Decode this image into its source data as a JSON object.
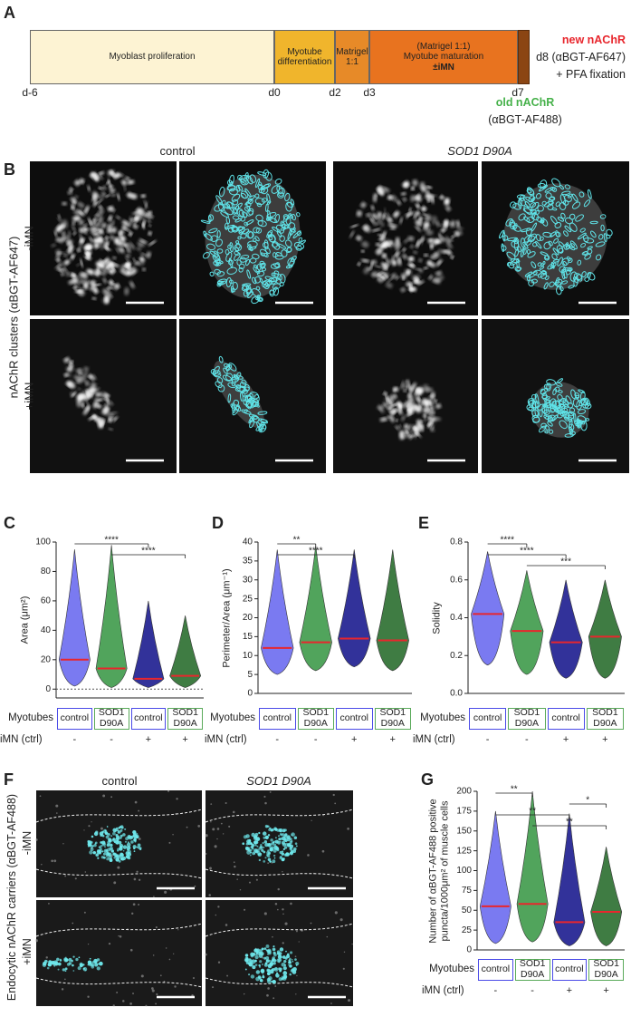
{
  "panel_labels": [
    "A",
    "B",
    "C",
    "D",
    "E",
    "F",
    "G"
  ],
  "timeline": {
    "stages": [
      {
        "lines": [
          "Myoblast proliferation"
        ],
        "color": "#fdf3d3"
      },
      {
        "lines": [
          "Myotube differentiation"
        ],
        "color": "#f0b52c"
      },
      {
        "lines": [
          "Matrigel 1:1"
        ],
        "color": "#e78a28"
      },
      {
        "lines": [
          "(Matrigel 1:1)",
          "Myotube maturation",
          "±iMN"
        ],
        "color": "#e8731f"
      }
    ],
    "days": [
      "d-6",
      "d0",
      "d2",
      "d3",
      "d7"
    ],
    "new_label": "new nAChR",
    "new_detail": [
      "d8 (αBGT-AF647)",
      "+ PFA fixation"
    ],
    "old_label": "old nAChR",
    "old_detail": "(αBGT-AF488)"
  },
  "panel_b": {
    "columns": [
      "control",
      "SOD1 D90A"
    ],
    "row_label": "nAChR clusters (αBGT-AF647)",
    "rows": [
      "-iMN",
      "+iMN"
    ]
  },
  "panel_f": {
    "columns": [
      "control",
      "SOD1 D90A"
    ],
    "row_label": "Endocytic nAChR carriers (αBGT-AF488)",
    "rows": [
      "-iMN",
      "+iMN"
    ]
  },
  "chart_data": [
    {
      "type": "violin",
      "y_label": "Area (μm²)",
      "group_label": "Myotubes",
      "categories": [
        "control",
        "SOD1 D90A",
        "control",
        "SOD1 D90A"
      ],
      "imn_label": "iMN (ctrl)",
      "imn": [
        "-",
        "-",
        "+",
        "+"
      ],
      "colors": [
        "#6b6bef",
        "#3e9a4a",
        "#1c1c8f",
        "#2a6e2f"
      ],
      "box_colors": [
        "#4a4ae8",
        "#5aaa5a",
        "#4a4ae8",
        "#5aaa5a"
      ],
      "medians": [
        20,
        14,
        7,
        9
      ],
      "maxima": [
        95,
        98,
        60,
        50
      ],
      "minima": [
        2,
        1,
        1,
        1
      ],
      "ylim": [
        -6,
        100
      ],
      "yticks": [
        0,
        20,
        40,
        60,
        80,
        100
      ],
      "zero_line": true,
      "significance": [
        {
          "from": 0,
          "to": 2,
          "label": "****"
        },
        {
          "from": 1,
          "to": 3,
          "label": "****"
        }
      ]
    },
    {
      "type": "violin",
      "y_label": "Perimeter/Area (μm⁻¹)",
      "group_label": "Myotubes",
      "categories": [
        "control",
        "SOD1 D90A",
        "control",
        "SOD1 D90A"
      ],
      "imn_label": "iMN (ctrl)",
      "imn": [
        "-",
        "-",
        "+",
        "+"
      ],
      "colors": [
        "#6b6bef",
        "#3e9a4a",
        "#1c1c8f",
        "#2a6e2f"
      ],
      "box_colors": [
        "#4a4ae8",
        "#5aaa5a",
        "#4a4ae8",
        "#5aaa5a"
      ],
      "medians": [
        12,
        13.5,
        14.5,
        14
      ],
      "maxima": [
        38,
        39,
        38,
        38
      ],
      "minima": [
        5,
        6,
        7,
        6
      ],
      "ylim": [
        0,
        40
      ],
      "yticks": [
        0,
        5,
        10,
        15,
        20,
        25,
        30,
        35,
        40
      ],
      "zero_line": false,
      "significance": [
        {
          "from": 0,
          "to": 1,
          "label": "**"
        },
        {
          "from": 0,
          "to": 2,
          "label": "****"
        }
      ]
    },
    {
      "type": "violin",
      "y_label": "Solidity",
      "group_label": "Myotubes",
      "categories": [
        "control",
        "SOD1 D90A",
        "control",
        "SOD1 D90A"
      ],
      "imn_label": "iMN (ctrl)",
      "imn": [
        "-",
        "-",
        "+",
        "+"
      ],
      "colors": [
        "#6b6bef",
        "#3e9a4a",
        "#1c1c8f",
        "#2a6e2f"
      ],
      "box_colors": [
        "#4a4ae8",
        "#5aaa5a",
        "#4a4ae8",
        "#5aaa5a"
      ],
      "medians": [
        0.42,
        0.33,
        0.27,
        0.3
      ],
      "maxima": [
        0.75,
        0.65,
        0.6,
        0.6
      ],
      "minima": [
        0.15,
        0.1,
        0.08,
        0.08
      ],
      "ylim": [
        0,
        0.8
      ],
      "yticks": [
        {
          "value": 0,
          "label": "0.0"
        },
        0.2,
        0.4,
        0.6,
        0.8
      ],
      "zero_line": false,
      "significance": [
        {
          "from": 0,
          "to": 1,
          "label": "****"
        },
        {
          "from": 0,
          "to": 2,
          "label": "****"
        },
        {
          "from": 1,
          "to": 3,
          "label": "***"
        }
      ]
    },
    {
      "type": "violin",
      "y_label": "Number of αBGT-AF488 positive puncta/1000μm² of muscle cells",
      "group_label": "Myotubes",
      "categories": [
        "control",
        "SOD1 D90A",
        "control",
        "SOD1 D90A"
      ],
      "imn_label": "iMN (ctrl)",
      "imn": [
        "-",
        "-",
        "+",
        "+"
      ],
      "colors": [
        "#6b6bef",
        "#3e9a4a",
        "#1c1c8f",
        "#2a6e2f"
      ],
      "box_colors": [
        "#4a4ae8",
        "#5aaa5a",
        "#4a4ae8",
        "#5aaa5a"
      ],
      "medians": [
        55,
        58,
        35,
        48
      ],
      "maxima": [
        175,
        200,
        172,
        130
      ],
      "minima": [
        8,
        10,
        5,
        5
      ],
      "ylim": [
        0,
        200
      ],
      "yticks": [
        0,
        25,
        50,
        75,
        100,
        125,
        150,
        175,
        200
      ],
      "zero_line": false,
      "significance": [
        {
          "from": 0,
          "to": 1,
          "label": "**"
        },
        {
          "from": 2,
          "to": 3,
          "label": "*"
        },
        {
          "from": 0,
          "to": 2,
          "label": "**"
        },
        {
          "from": 1,
          "to": 3,
          "label": "**"
        }
      ]
    }
  ]
}
